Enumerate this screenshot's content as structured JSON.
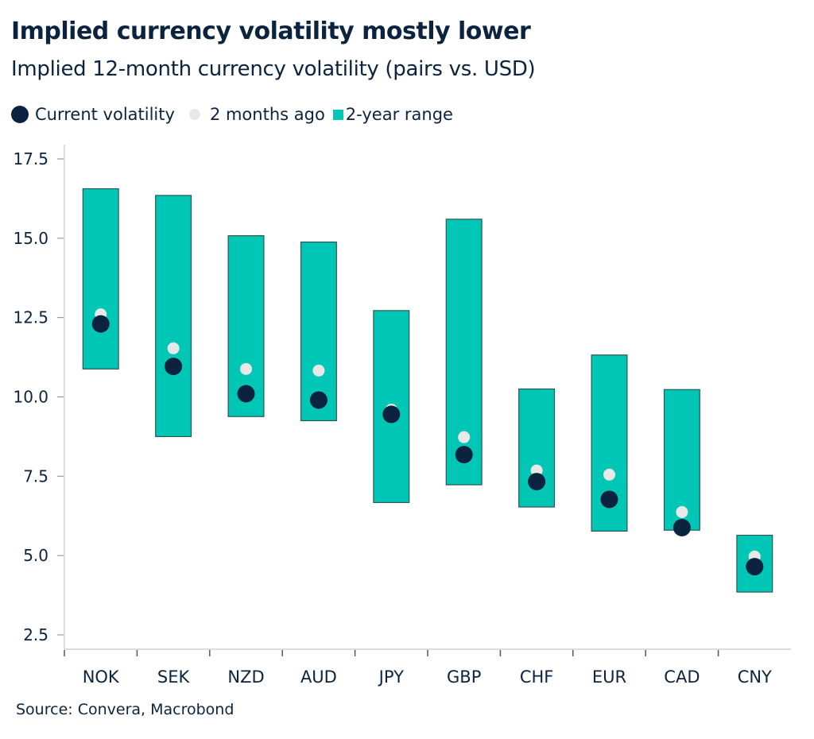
{
  "header": {
    "title": "Implied currency volatility mostly lower",
    "subtitle": "Implied 12-month currency volatility (pairs vs. USD)"
  },
  "legend": {
    "items": [
      {
        "label": "Current volatility",
        "icon": "dark-circle",
        "color": "#0c2340"
      },
      {
        "label": "2 months ago",
        "icon": "light-circle",
        "color": "#e8e8e8"
      },
      {
        "label": "2-year range",
        "icon": "teal-square",
        "color": "#00c7b5"
      }
    ]
  },
  "footer": {
    "source": "Source: Convera, Macrobond"
  },
  "chart_data": {
    "type": "range-dot",
    "title": "Implied currency volatility mostly lower",
    "subtitle": "Implied 12-month currency volatility (pairs vs. USD)",
    "xlabel": "",
    "ylabel": "",
    "ylim": [
      2.0,
      17.95
    ],
    "yticks": [
      2.5,
      5.0,
      7.5,
      10.0,
      12.5,
      15.0,
      17.5
    ],
    "ytick_labels": [
      "2.5",
      "5.0",
      "7.5",
      "10.0",
      "12.5",
      "15.0",
      "17.5"
    ],
    "grid": false,
    "legend_position": "top-left",
    "categories": [
      "NOK",
      "SEK",
      "NZD",
      "AUD",
      "JPY",
      "GBP",
      "CHF",
      "EUR",
      "CAD",
      "CNY"
    ],
    "series": [
      {
        "name": "2-year range",
        "type": "range",
        "color": "#00c7b5",
        "low": [
          10.88,
          8.75,
          9.38,
          9.25,
          6.67,
          7.23,
          6.53,
          5.77,
          5.8,
          3.85
        ],
        "high": [
          16.56,
          16.35,
          15.08,
          14.88,
          12.72,
          15.6,
          10.25,
          11.32,
          10.23,
          5.64
        ]
      },
      {
        "name": "2 months ago",
        "type": "scatter",
        "color": "#e8e8e8",
        "values": [
          12.6,
          11.53,
          10.88,
          10.83,
          9.6,
          8.73,
          7.68,
          7.55,
          6.37,
          4.97
        ]
      },
      {
        "name": "Current volatility",
        "type": "scatter",
        "color": "#0c2340",
        "values": [
          12.3,
          10.96,
          10.1,
          9.9,
          9.45,
          8.18,
          7.33,
          6.77,
          5.88,
          4.65
        ]
      }
    ]
  }
}
